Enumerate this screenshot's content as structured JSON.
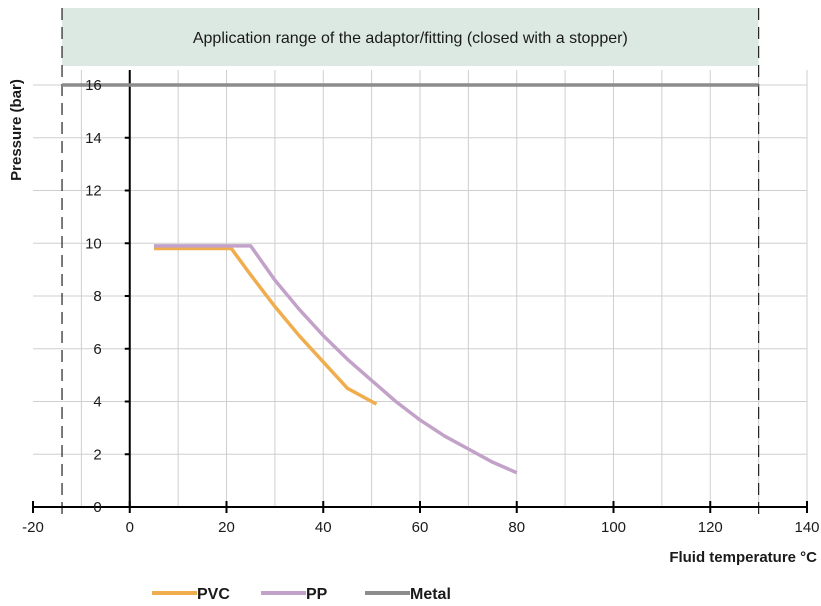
{
  "chart_data": {
    "type": "line",
    "title": "",
    "xlabel": "Fluid temperature °C",
    "ylabel": "Pressure (bar)",
    "xlim": [
      -20,
      140
    ],
    "ylim": [
      0,
      16
    ],
    "x_ticks": [
      -20,
      0,
      20,
      40,
      60,
      80,
      100,
      120,
      140
    ],
    "y_ticks": [
      0,
      2,
      4,
      6,
      8,
      10,
      12,
      14,
      16
    ],
    "grid": true,
    "legend_position": "bottom",
    "application_range": {
      "label": "Application range of the adaptor/fitting (closed with a stopper)",
      "x_range": [
        -14,
        130
      ],
      "color": "#dbe9e2"
    },
    "series": [
      {
        "name": "PVC",
        "color": "#f0ad4e",
        "x": [
          5,
          21,
          25,
          30,
          35,
          40,
          45,
          51
        ],
        "y": [
          9.8,
          9.8,
          8.8,
          7.6,
          6.5,
          5.5,
          4.5,
          3.9
        ]
      },
      {
        "name": "PP",
        "color": "#c3a2c9",
        "x": [
          5,
          25,
          30,
          35,
          40,
          45,
          50,
          55,
          60,
          65,
          70,
          75,
          80
        ],
        "y": [
          9.9,
          9.9,
          8.6,
          7.5,
          6.5,
          5.6,
          4.8,
          4.0,
          3.3,
          2.7,
          2.2,
          1.7,
          1.3
        ]
      },
      {
        "name": "Metal",
        "color": "#8c8c8c",
        "x": [
          -14,
          130
        ],
        "y": [
          16,
          16
        ]
      }
    ]
  }
}
